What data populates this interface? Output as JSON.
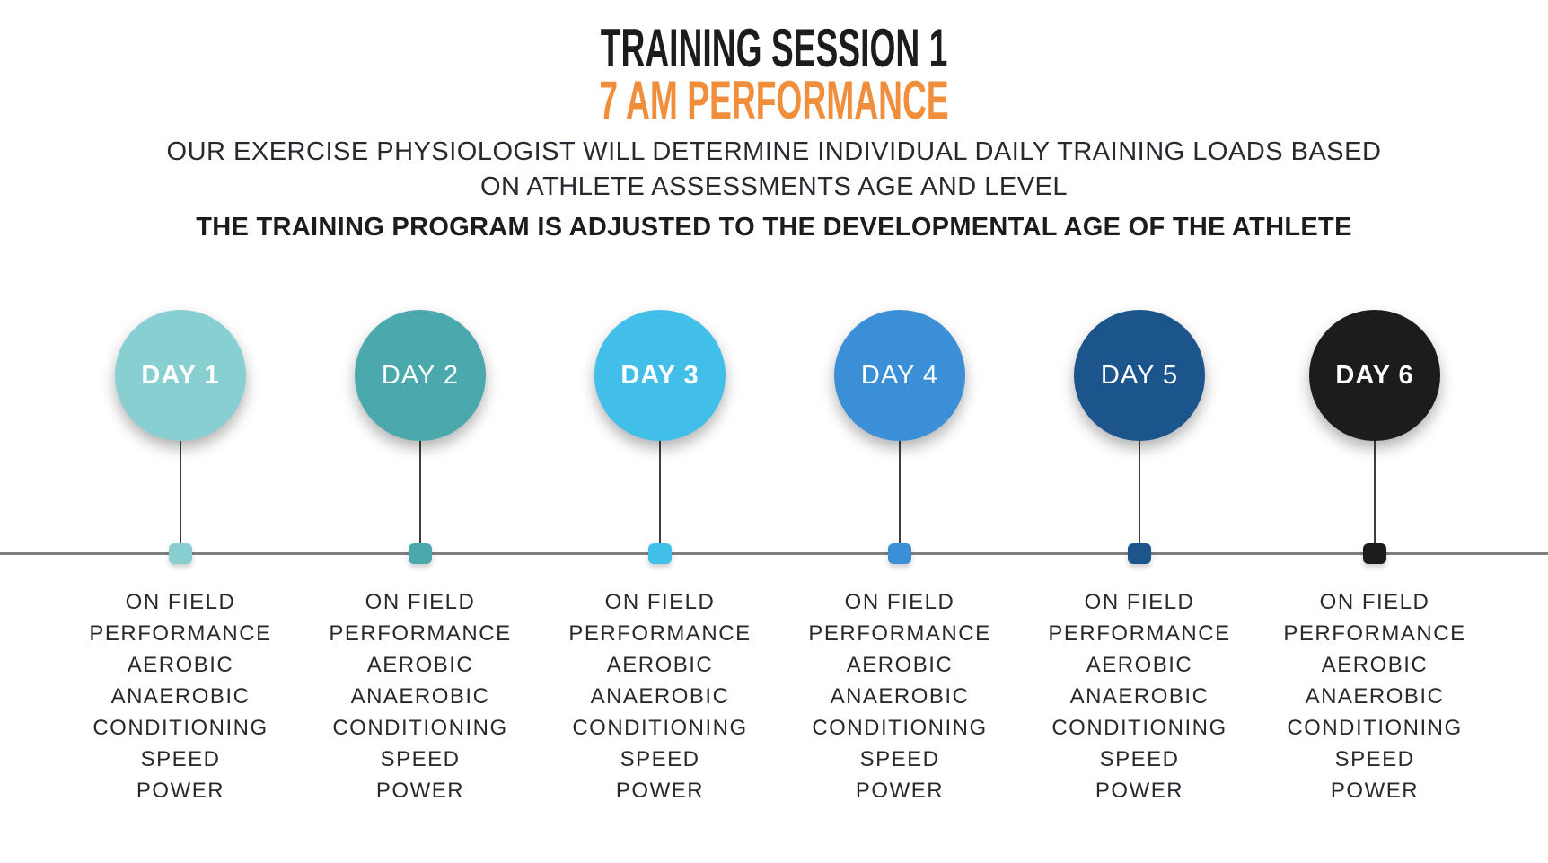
{
  "header": {
    "title": "TRAINING SESSION 1",
    "subtitle": "7 AM PERFORMANCE",
    "description_line1": "OUR EXERCISE PHYSIOLOGIST WILL DETERMINE INDIVIDUAL DAILY TRAINING LOADS BASED",
    "description_line2": "ON ATHLETE ASSESSMENTS AGE AND LEVEL",
    "emphasis": "THE TRAINING PROGRAM IS ADJUSTED TO THE DEVELOPMENTAL AGE OF THE ATHLETE"
  },
  "colors": {
    "title_text": "#1c1c1e",
    "accent_orange": "#f08e3c",
    "body_text": "#28282e",
    "axis_line": "#7e7e7e",
    "stem_line": "#3f3f3f",
    "label_text": "#ffffff"
  },
  "timeline": {
    "days": [
      {
        "label": "DAY 1",
        "color": "#87cfd0",
        "bold_label": true,
        "activities": [
          "ON FIELD",
          "PERFORMANCE",
          "AEROBIC",
          "ANAEROBIC",
          "CONDITIONING",
          "SPEED",
          "POWER"
        ]
      },
      {
        "label": "DAY 2",
        "color": "#4ba9ad",
        "bold_label": false,
        "activities": [
          "ON FIELD",
          "PERFORMANCE",
          "AEROBIC",
          "ANAEROBIC",
          "CONDITIONING",
          "SPEED",
          "POWER"
        ]
      },
      {
        "label": "DAY 3",
        "color": "#41bfe8",
        "bold_label": true,
        "activities": [
          "ON FIELD",
          "PERFORMANCE",
          "AEROBIC",
          "ANAEROBIC",
          "CONDITIONING",
          "SPEED",
          "POWER"
        ]
      },
      {
        "label": "DAY 4",
        "color": "#3a8fd6",
        "bold_label": false,
        "activities": [
          "ON FIELD",
          "PERFORMANCE",
          "AEROBIC",
          "ANAEROBIC",
          "CONDITIONING",
          "SPEED",
          "POWER"
        ]
      },
      {
        "label": "DAY 5",
        "color": "#1b558c",
        "bold_label": false,
        "activities": [
          "ON FIELD",
          "PERFORMANCE",
          "AEROBIC",
          "ANAEROBIC",
          "CONDITIONING",
          "SPEED",
          "POWER"
        ]
      },
      {
        "label": "DAY 6",
        "color": "#1c1c1c",
        "bold_label": true,
        "activities": [
          "ON FIELD",
          "PERFORMANCE",
          "AEROBIC",
          "ANAEROBIC",
          "CONDITIONING",
          "SPEED",
          "POWER"
        ]
      }
    ]
  }
}
